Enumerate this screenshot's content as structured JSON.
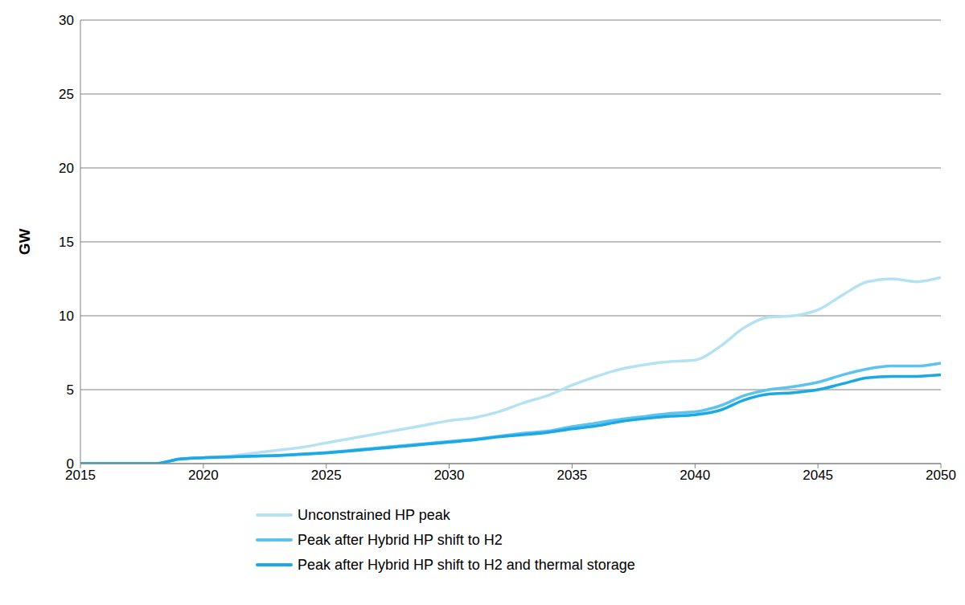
{
  "chart_data": {
    "type": "line",
    "y_label": "GW",
    "x": [
      2015,
      2016,
      2017,
      2018,
      2019,
      2020,
      2021,
      2022,
      2023,
      2024,
      2025,
      2026,
      2027,
      2028,
      2029,
      2030,
      2031,
      2032,
      2033,
      2034,
      2035,
      2036,
      2037,
      2038,
      2039,
      2040,
      2041,
      2042,
      2043,
      2044,
      2045,
      2046,
      2047,
      2048,
      2049,
      2050
    ],
    "xlim": [
      2015,
      2050
    ],
    "xticks": [
      2015,
      2020,
      2025,
      2030,
      2035,
      2040,
      2045,
      2050
    ],
    "ylim": [
      0,
      30
    ],
    "yticks": [
      0,
      5,
      10,
      15,
      20,
      25,
      30
    ],
    "grid": true,
    "legend": "bottom",
    "series": [
      {
        "name": "Unconstrained HP peak",
        "color": "#b5e2f3",
        "values": [
          0,
          0,
          0,
          0,
          0.3,
          0.4,
          0.5,
          0.7,
          0.9,
          1.1,
          1.4,
          1.7,
          2.0,
          2.3,
          2.6,
          2.9,
          3.1,
          3.5,
          4.1,
          4.6,
          5.3,
          5.9,
          6.4,
          6.7,
          6.9,
          7.0,
          7.9,
          9.2,
          9.9,
          10.0,
          10.4,
          11.4,
          12.3,
          12.5,
          12.3,
          12.6
        ]
      },
      {
        "name": "Peak after Hybrid HP shift to H2",
        "color": "#5cc3ee",
        "values": [
          0,
          0,
          0,
          0,
          0.3,
          0.4,
          0.45,
          0.5,
          0.55,
          0.65,
          0.75,
          0.9,
          1.05,
          1.2,
          1.35,
          1.5,
          1.65,
          1.85,
          2.05,
          2.2,
          2.5,
          2.75,
          3.0,
          3.2,
          3.4,
          3.5,
          3.9,
          4.6,
          5.0,
          5.2,
          5.5,
          6.0,
          6.4,
          6.6,
          6.6,
          6.8
        ]
      },
      {
        "name": "Peak after Hybrid HP shift to H2 and thermal storage",
        "color": "#1ca7e5",
        "values": [
          0,
          0,
          0,
          0,
          0.3,
          0.4,
          0.45,
          0.5,
          0.55,
          0.62,
          0.72,
          0.85,
          1.0,
          1.15,
          1.3,
          1.45,
          1.6,
          1.8,
          1.95,
          2.1,
          2.35,
          2.55,
          2.85,
          3.05,
          3.2,
          3.3,
          3.6,
          4.3,
          4.7,
          4.8,
          5.0,
          5.4,
          5.8,
          5.9,
          5.9,
          6.0
        ]
      }
    ]
  }
}
